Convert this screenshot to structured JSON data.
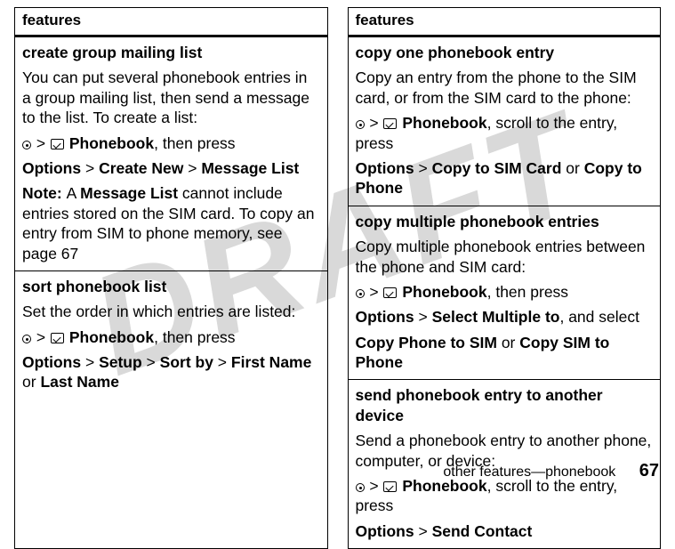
{
  "watermark": "DRAFT",
  "left": {
    "header": "features",
    "cells": [
      {
        "title": "create group mailing list",
        "body": "You can put several phonebook entries in a group mailing list, then send a message to the list. To create a list:",
        "nav_bold": "Phonebook",
        "nav_suffix": ", then press",
        "line2_parts": [
          "Options",
          " > ",
          "Create New",
          " > ",
          "Message List"
        ],
        "note_parts": [
          "Note: ",
          "A ",
          "Message List",
          " cannot include entries stored on the SIM card. To copy an entry from SIM to phone memory, see page 67"
        ]
      },
      {
        "title": "sort phonebook list",
        "body": "Set the order in which entries are listed:",
        "nav_bold": "Phonebook",
        "nav_suffix": ", then press",
        "line2_parts": [
          "Options",
          " > ",
          "Setup",
          " > ",
          "Sort by",
          " > ",
          "First Name",
          " or ",
          "Last Name"
        ]
      }
    ]
  },
  "right": {
    "header": "features",
    "cells": [
      {
        "title": "copy one phonebook entry",
        "body": "Copy an entry from the phone to the SIM card, or from the SIM card to the phone:",
        "nav_bold": "Phonebook",
        "nav_suffix": ", scroll to the entry, press",
        "line2_parts": [
          "Options",
          " > ",
          "Copy to SIM Card",
          " or ",
          "Copy to Phone"
        ]
      },
      {
        "title": "copy multiple phonebook entries",
        "body": "Copy multiple phonebook entries between the phone and SIM card:",
        "nav_bold": "Phonebook",
        "nav_suffix": ", then press",
        "line2_parts": [
          "Options",
          " > ",
          "Select Multiple to",
          ", and select"
        ],
        "line3_parts": [
          "Copy Phone to SIM",
          " or ",
          "Copy SIM to Phone"
        ]
      },
      {
        "title": "send phonebook entry to another device",
        "body": "Send a phonebook entry to another phone, computer, or device:",
        "nav_bold": "Phonebook",
        "nav_suffix": ", scroll to the entry, press",
        "line2_parts": [
          "Options",
          " > ",
          "Send Contact"
        ]
      }
    ]
  },
  "footer": {
    "text": "other features—phonebook",
    "page": "67"
  }
}
